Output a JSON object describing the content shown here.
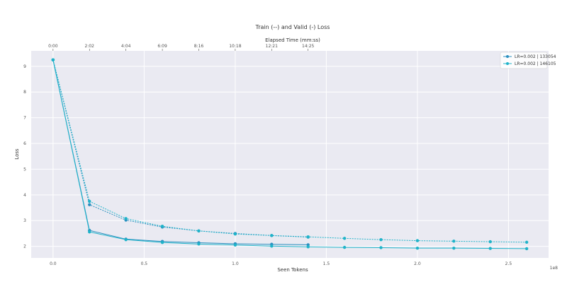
{
  "chart_data": {
    "type": "line",
    "title": "Train (--) and Valid (-) Loss",
    "xlabel": "Seen Tokens",
    "ylabel": "Loss",
    "x_multiplier": "1e8",
    "x_ticks": [
      "0.0",
      "0.5",
      "1.0",
      "1.5",
      "2.0",
      "2.5"
    ],
    "y_ticks": [
      "2",
      "3",
      "4",
      "5",
      "6",
      "7",
      "8",
      "9"
    ],
    "xlim": [
      -0.12,
      2.72
    ],
    "ylim": [
      1.55,
      9.6
    ],
    "grid": true,
    "legend_position": "top-right",
    "top_axis": {
      "label": "Elapsed Time (mm:ss)",
      "ticks": [
        {
          "x": 0.0,
          "label": "0:00"
        },
        {
          "x": 0.2,
          "label": "2:02"
        },
        {
          "x": 0.4,
          "label": "4:04"
        },
        {
          "x": 0.6,
          "label": "6:09"
        },
        {
          "x": 0.8,
          "label": "8:16"
        },
        {
          "x": 1.0,
          "label": "10:18"
        },
        {
          "x": 1.2,
          "label": "12:21"
        },
        {
          "x": 1.4,
          "label": "14:25"
        }
      ]
    },
    "series": [
      {
        "name": "LR=0.002 | 133054",
        "color": "#2a8fbf",
        "train": {
          "x": [
            0.0,
            0.2,
            0.4,
            0.6,
            0.8,
            1.0,
            1.2,
            1.4
          ],
          "y": [
            9.25,
            3.62,
            3.02,
            2.75,
            2.6,
            2.5,
            2.42,
            2.36
          ]
        },
        "valid": {
          "x": [
            0.0,
            0.2,
            0.4,
            0.6,
            0.8,
            1.0,
            1.2,
            1.4
          ],
          "y": [
            9.25,
            2.62,
            2.28,
            2.19,
            2.14,
            2.1,
            2.08,
            2.06
          ]
        }
      },
      {
        "name": "LR=0.002 | 146105",
        "color": "#1fb3c9",
        "train": {
          "x": [
            0.0,
            0.2,
            0.4,
            0.6,
            0.8,
            1.0,
            1.2,
            1.4,
            1.6,
            1.8,
            2.0,
            2.2,
            2.4,
            2.6
          ],
          "y": [
            9.25,
            3.75,
            3.08,
            2.78,
            2.6,
            2.48,
            2.42,
            2.37,
            2.31,
            2.26,
            2.22,
            2.2,
            2.18,
            2.16
          ]
        },
        "valid": {
          "x": [
            0.0,
            0.2,
            0.4,
            0.6,
            0.8,
            1.0,
            1.2,
            1.4,
            1.6,
            1.8,
            2.0,
            2.2,
            2.4,
            2.6
          ],
          "y": [
            9.25,
            2.56,
            2.26,
            2.15,
            2.09,
            2.05,
            2.01,
            1.98,
            1.96,
            1.95,
            1.93,
            1.93,
            1.92,
            1.91
          ]
        }
      }
    ]
  }
}
